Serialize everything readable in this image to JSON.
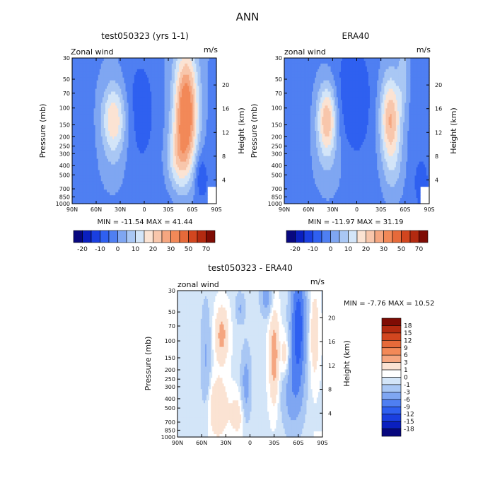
{
  "page_title": "ANN",
  "chart_data": [
    {
      "type": "heatmap",
      "id": "test",
      "title": "test050323 (yrs 1-1)",
      "subtitle_left": "Zonal wind",
      "subtitle_right": "m/s",
      "ylabel": "Pressure (mb)",
      "ylabel_right": "Height (km)",
      "x_ticks": [
        "90N",
        "60N",
        "30N",
        "0",
        "30S",
        "60S",
        "90S"
      ],
      "y_ticks": [
        "30",
        "50",
        "70",
        "100",
        "150",
        "200",
        "250",
        "300",
        "400",
        "500",
        "700",
        "850",
        "1000"
      ],
      "y_right_ticks": [
        "20",
        "16",
        "12",
        "8",
        "4"
      ],
      "stats": "MIN = -11.54   MAX = 41.44",
      "min": -11.54,
      "max": 41.44,
      "colorbar_labels": [
        "-20",
        "-10",
        "0",
        "10",
        "20",
        "30",
        "50",
        "70"
      ]
    },
    {
      "type": "heatmap",
      "id": "era",
      "title": "ERA40",
      "subtitle_left": "zonal wind",
      "subtitle_right": "m/s",
      "ylabel": "Pressure (mb)",
      "ylabel_right": "Height (km)",
      "x_ticks": [
        "90N",
        "60N",
        "30N",
        "0",
        "30S",
        "60S",
        "90S"
      ],
      "y_ticks": [
        "30",
        "50",
        "70",
        "100",
        "150",
        "200",
        "250",
        "300",
        "400",
        "500",
        "700",
        "850",
        "1000"
      ],
      "y_right_ticks": [
        "20",
        "16",
        "12",
        "8",
        "4"
      ],
      "stats": "MIN = -11.97   MAX = 31.19",
      "min": -11.97,
      "max": 31.19,
      "colorbar_labels": [
        "-20",
        "-10",
        "0",
        "10",
        "20",
        "30",
        "50",
        "70"
      ]
    },
    {
      "type": "heatmap",
      "id": "diff",
      "title": "test050323 - ERA40",
      "subtitle_left": "zonal wind",
      "subtitle_right": "m/s",
      "ylabel": "Pressure (mb)",
      "ylabel_right": "Height (km)",
      "x_ticks": [
        "90N",
        "60N",
        "30N",
        "0",
        "30S",
        "60S",
        "90S"
      ],
      "y_ticks": [
        "30",
        "50",
        "70",
        "100",
        "150",
        "200",
        "250",
        "300",
        "400",
        "500",
        "700",
        "850",
        "1000"
      ],
      "y_right_ticks": [
        "20",
        "16",
        "12",
        "8",
        "4"
      ],
      "stats": "MIN =   -7.76   MAX =   10.52",
      "min": -7.76,
      "max": 10.52,
      "colorbar_labels": [
        "18",
        "15",
        "12",
        "9",
        "6",
        "3",
        "1",
        "0",
        "-1",
        "-3",
        "-6",
        "-9",
        "-12",
        "-15",
        "-18"
      ]
    }
  ],
  "palettes": {
    "main": [
      "#08087f",
      "#0a1fbf",
      "#1a3fe0",
      "#2f60f0",
      "#4f7ff2",
      "#7fa6f2",
      "#a9c7f4",
      "#d3e5f8",
      "#fbe3d3",
      "#f8c6ab",
      "#f5a680",
      "#f28958",
      "#e66a3a",
      "#d2461f",
      "#b32a10",
      "#7f0c04"
    ],
    "diff": [
      "#7f0c04",
      "#b32a10",
      "#d2461f",
      "#e66a3a",
      "#f28958",
      "#f5a680",
      "#fbe3d3",
      "#ffffff",
      "#d3e5f8",
      "#a9c7f4",
      "#7fa6f2",
      "#4f7ff2",
      "#2f60f0",
      "#1a3fe0",
      "#0a1fbf",
      "#08087f"
    ]
  }
}
